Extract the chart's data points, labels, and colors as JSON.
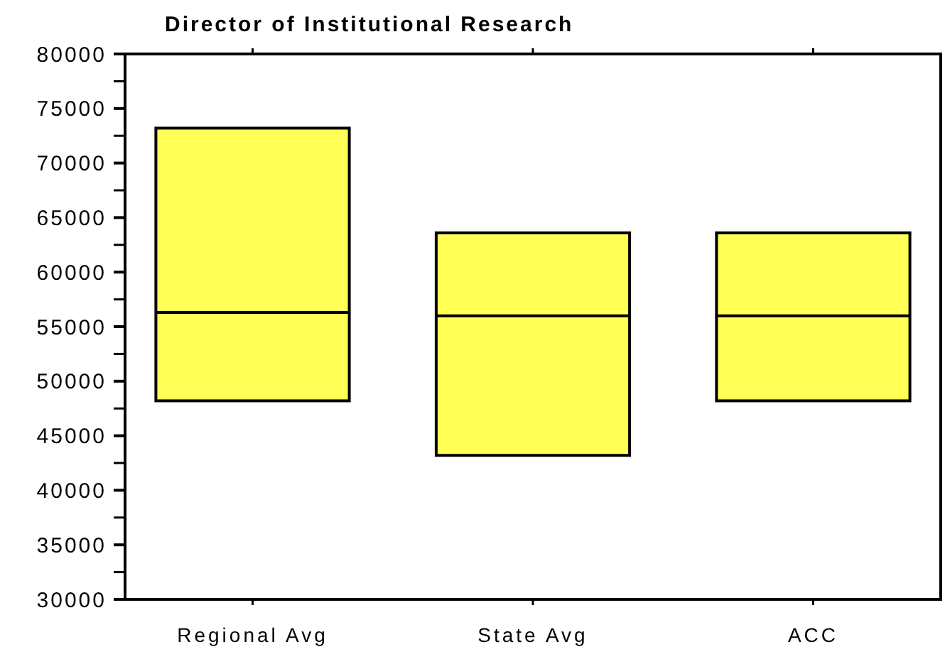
{
  "chart_data": {
    "type": "box",
    "title": "Director of Institutional Research",
    "categories": [
      "Regional Avg",
      "State Avg",
      "ACC"
    ],
    "color": "#ffff55",
    "boxes": [
      {
        "low": 48200,
        "q1": 48200,
        "median": 56300,
        "q3": 73200,
        "high": 73200
      },
      {
        "low": 43200,
        "q1": 43200,
        "median": 56000,
        "q3": 63600,
        "high": 63600
      },
      {
        "low": 48200,
        "q1": 48200,
        "median": 56000,
        "q3": 63600,
        "high": 63600
      }
    ],
    "ylim": [
      30000,
      80000
    ],
    "yticks": [
      30000,
      {
        "value": 32500,
        "label": null
      },
      35000,
      {
        "value": 37500,
        "label": null
      },
      40000,
      {
        "value": 42500,
        "label": null
      },
      45000,
      {
        "value": 47500,
        "label": null
      },
      50000,
      {
        "value": 52500,
        "label": null
      },
      55000,
      {
        "value": 57500,
        "label": null
      },
      60000,
      {
        "value": 62500,
        "label": null
      },
      65000,
      {
        "value": 67500,
        "label": null
      },
      70000,
      {
        "value": 72500,
        "label": null
      },
      75000,
      {
        "value": 77500,
        "label": null
      },
      80000
    ],
    "grid": false
  }
}
